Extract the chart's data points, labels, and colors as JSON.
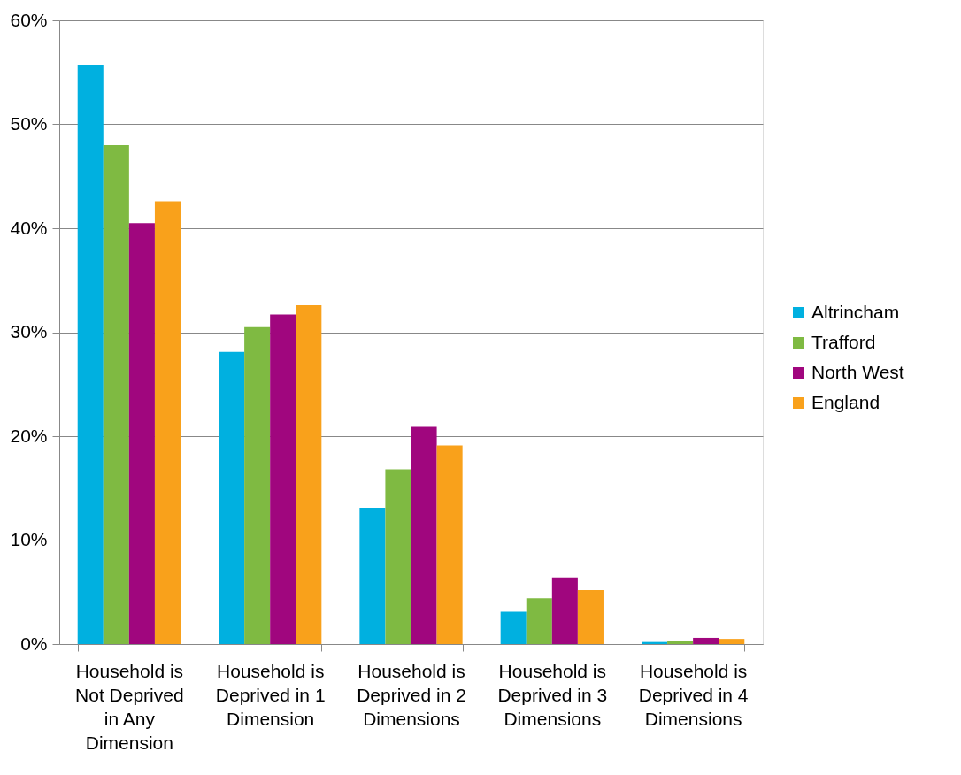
{
  "chart_data": {
    "type": "bar",
    "categories": [
      "Household is Not Deprived in Any Dimension",
      "Household is Deprived in 1 Dimension",
      "Household is Deprived in 2 Dimensions",
      "Household is Deprived in 3 Dimensions",
      "Household is Deprived in 4 Dimensions"
    ],
    "series": [
      {
        "name": "Altrincham",
        "color": "#00b0e0",
        "values": [
          55.7,
          28.1,
          13.1,
          3.1,
          0.2
        ]
      },
      {
        "name": "Trafford",
        "color": "#7fba42",
        "values": [
          48.0,
          30.5,
          16.8,
          4.4,
          0.3
        ]
      },
      {
        "name": "North West",
        "color": "#a0067e",
        "values": [
          40.5,
          31.7,
          20.9,
          6.4,
          0.6
        ]
      },
      {
        "name": "England",
        "color": "#f9a11b",
        "values": [
          42.6,
          32.6,
          19.1,
          5.2,
          0.5
        ]
      }
    ],
    "ylim": [
      0,
      60
    ],
    "yticks": [
      {
        "value": 0,
        "label": "0%"
      },
      {
        "value": 10,
        "label": "10%"
      },
      {
        "value": 20,
        "label": "20%"
      },
      {
        "value": 30,
        "label": "30%"
      },
      {
        "value": 40,
        "label": "40%"
      },
      {
        "value": 50,
        "label": "50%"
      },
      {
        "value": 60,
        "label": "60%"
      }
    ],
    "grid": "y",
    "legend": "right"
  }
}
